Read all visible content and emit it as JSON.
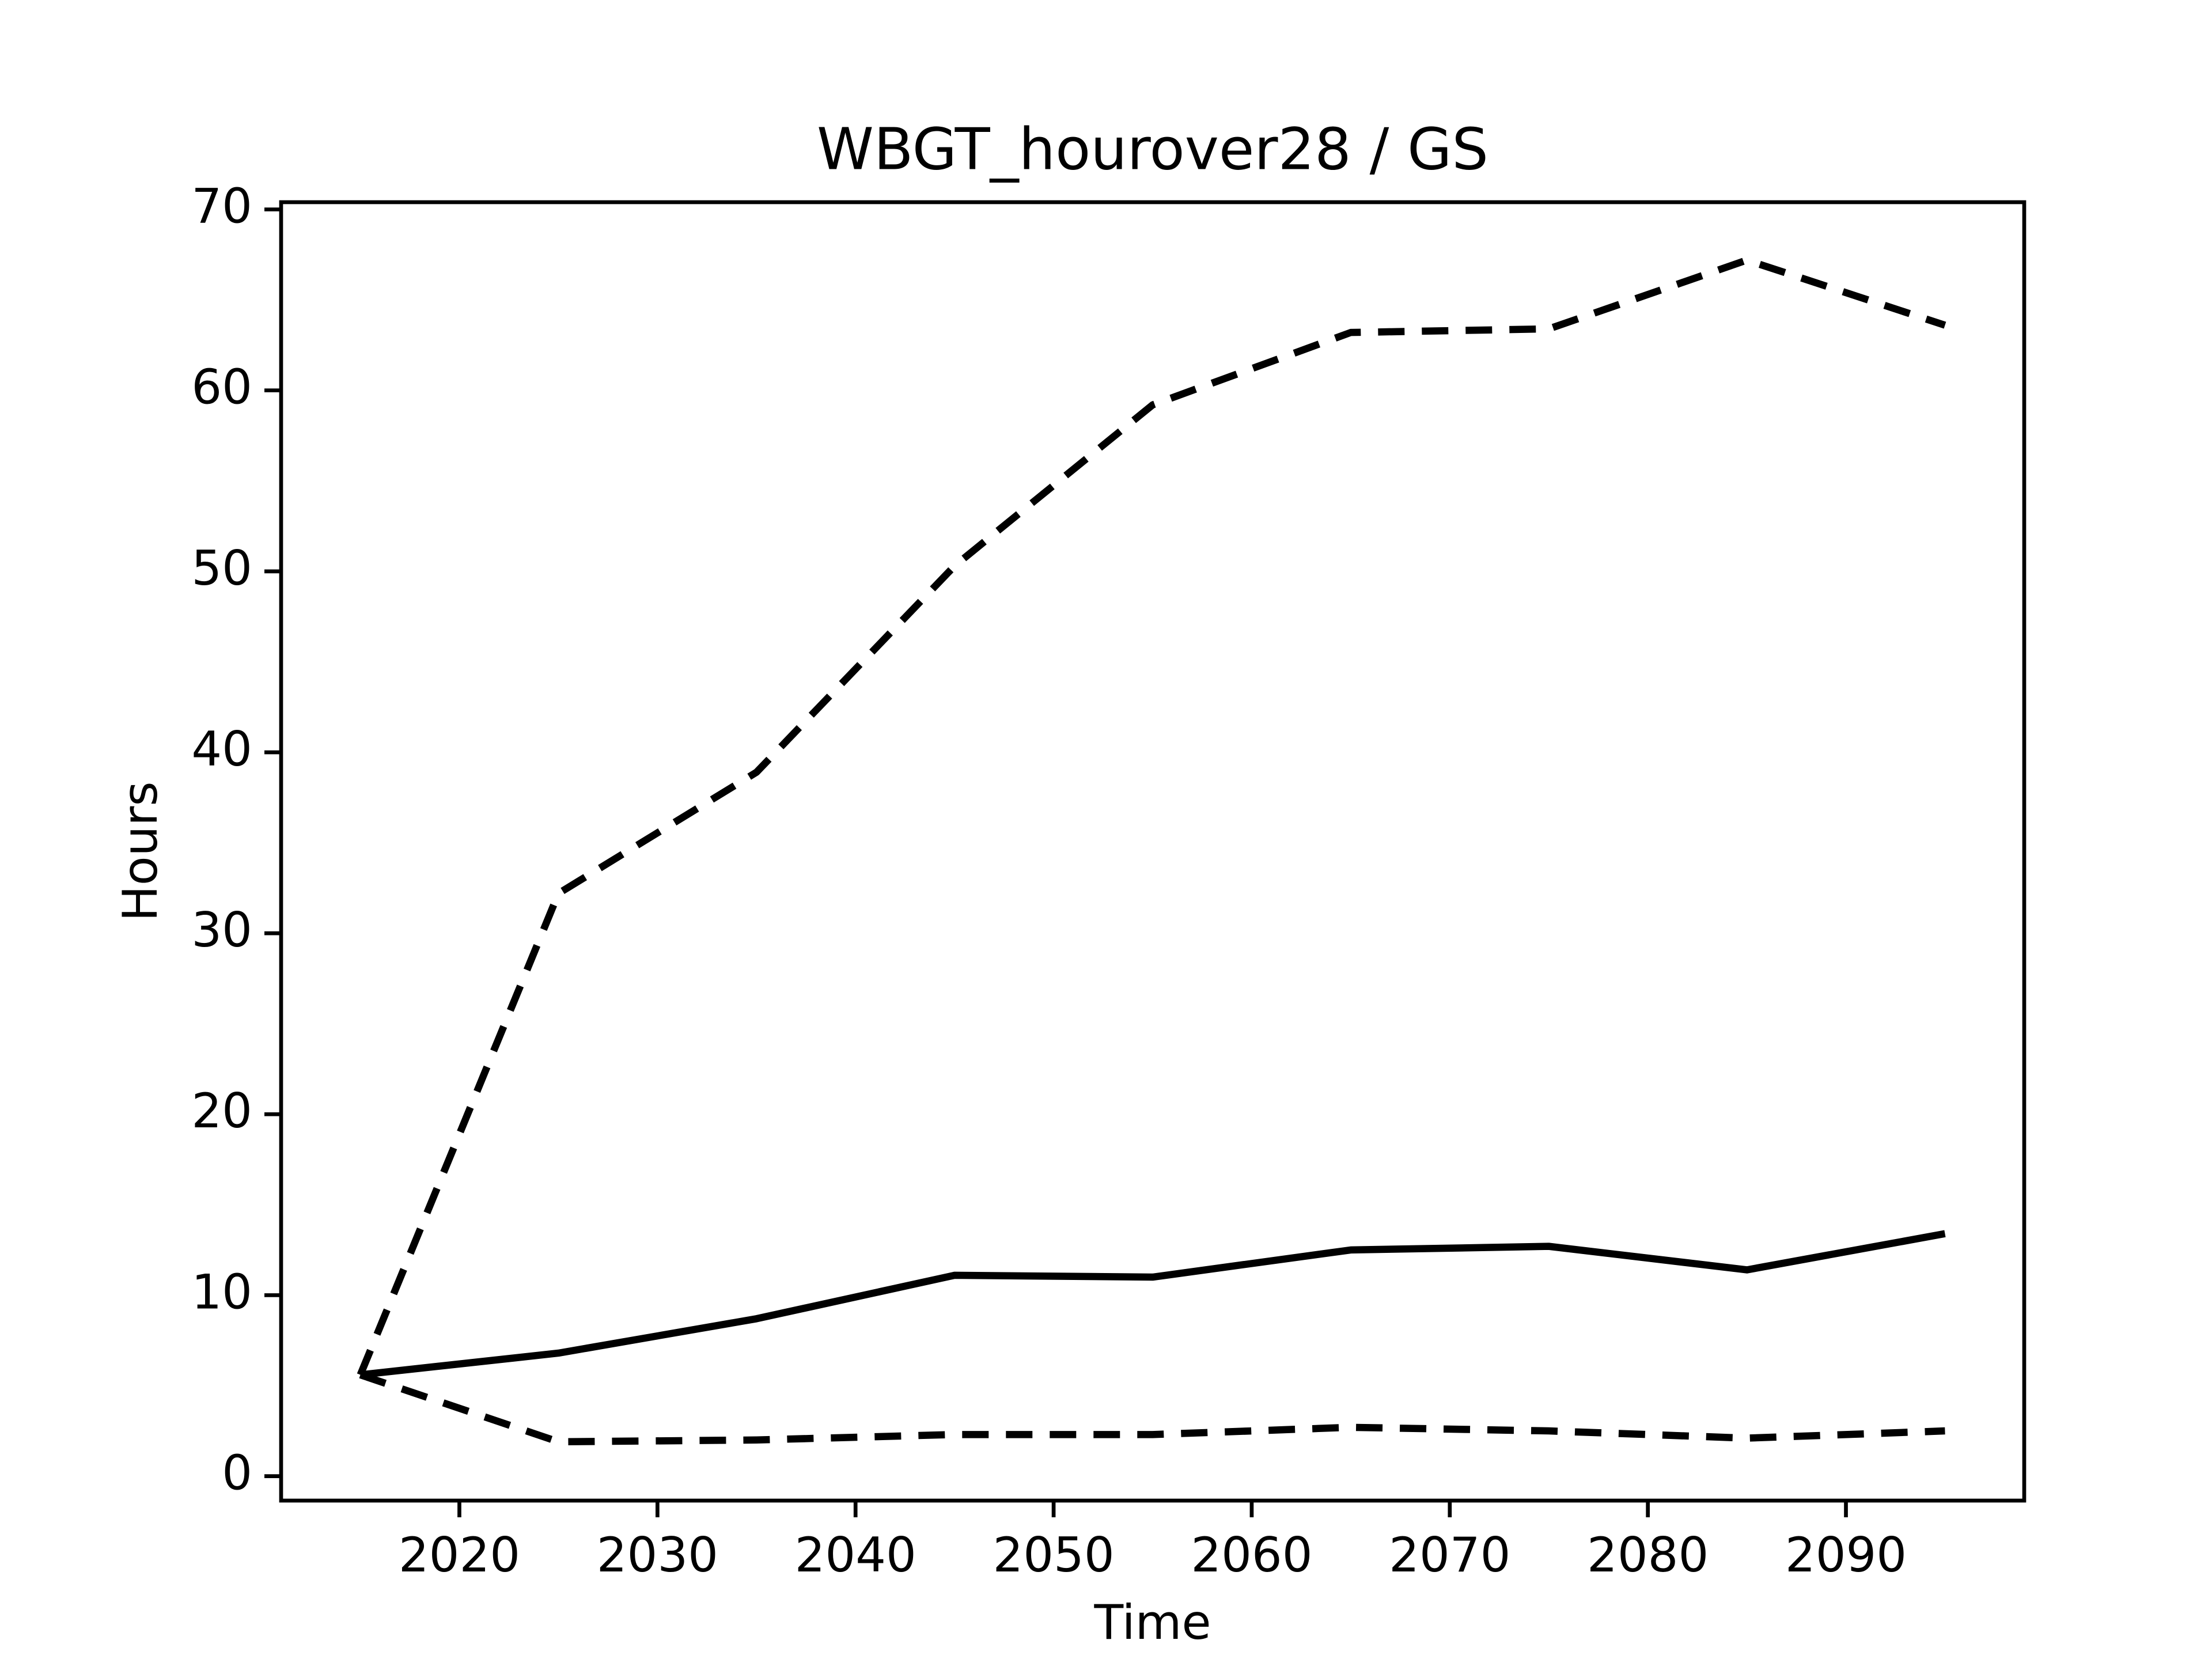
{
  "chart_data": {
    "type": "line",
    "title": "WBGT_hourover28 / GS",
    "x_label": "Time",
    "y_label": "Hours",
    "x": [
      2015,
      2025,
      2035,
      2045,
      2055,
      2065,
      2075,
      2085,
      2095
    ],
    "series": [
      {
        "color": "#000000",
        "linestyle": "solid",
        "values": [
          5.6,
          6.8,
          8.7,
          11.1,
          11.0,
          12.5,
          12.7,
          11.4,
          13.4
        ]
      },
      {
        "color": "#000000",
        "linestyle": "dashed",
        "values": [
          5.6,
          32.2,
          38.9,
          50.3,
          59.2,
          63.2,
          63.4,
          67.2,
          63.6
        ]
      },
      {
        "color": "#000000",
        "linestyle": "dashed",
        "values": [
          5.6,
          1.9,
          2.0,
          2.3,
          2.3,
          2.7,
          2.5,
          2.1,
          2.5
        ]
      }
    ],
    "xlim": [
      2011,
      2099
    ],
    "xticks": [
      2020,
      2030,
      2040,
      2050,
      2060,
      2070,
      2080,
      2090
    ],
    "ylim": [
      -1.35,
      70.4
    ],
    "yticks": [
      0,
      10,
      20,
      30,
      40,
      50,
      60,
      70
    ],
    "grid": false
  }
}
